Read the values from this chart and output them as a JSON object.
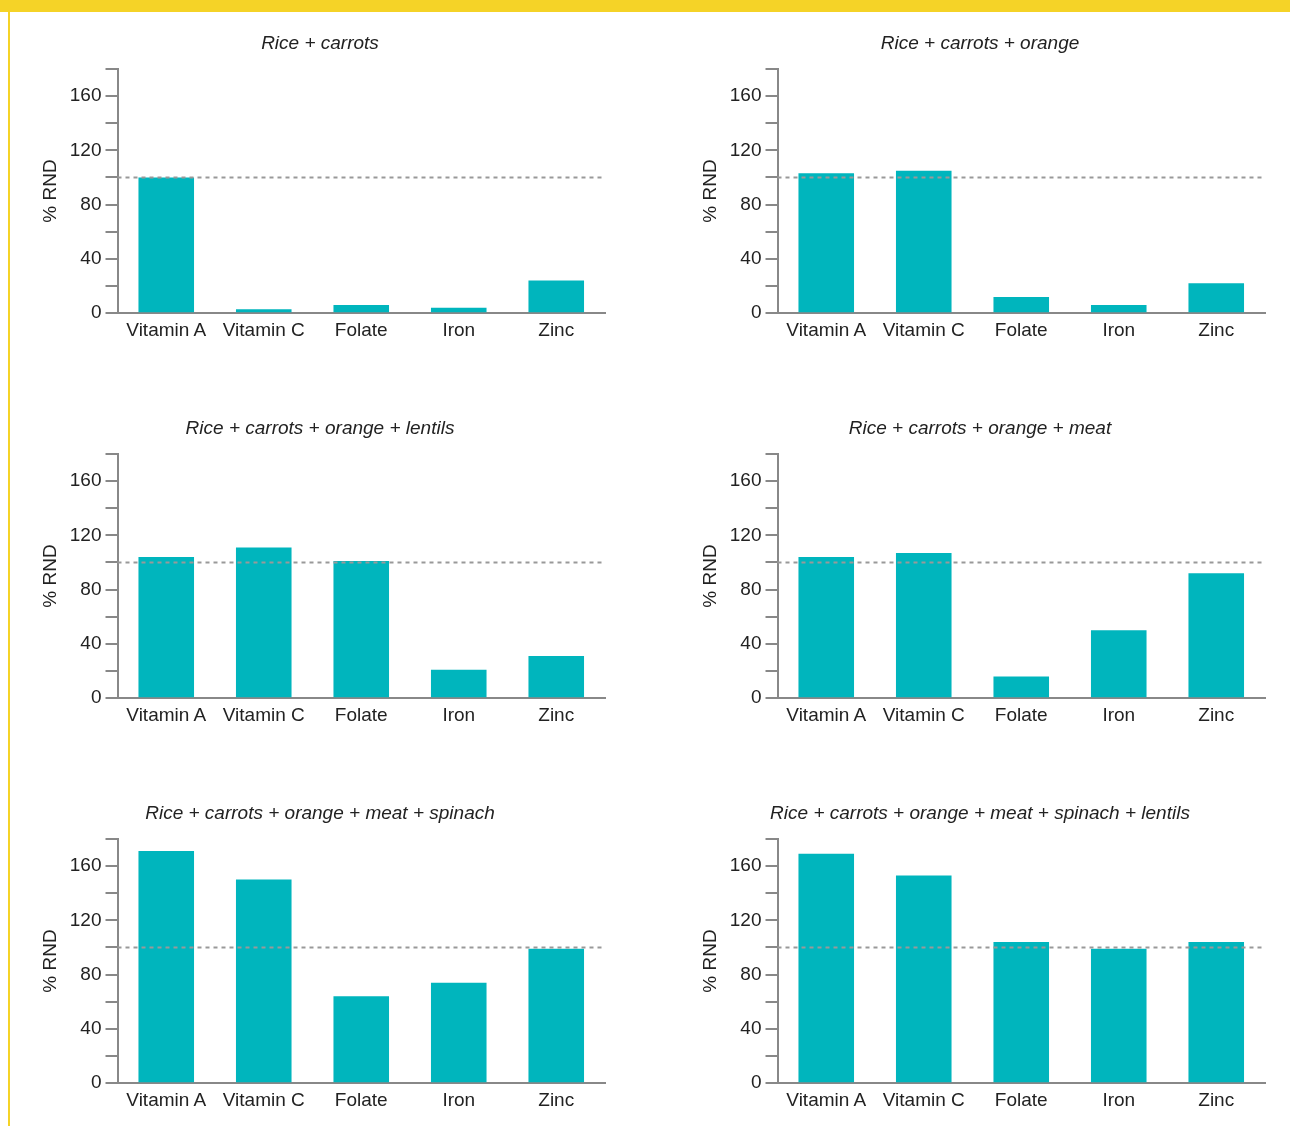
{
  "chart_data": [
    {
      "type": "bar",
      "title": "Rice + carrots",
      "ylabel": "% RND",
      "categories": [
        "Vitamin A",
        "Vitamin C",
        "Folate",
        "Iron",
        "Zinc"
      ],
      "values": [
        100,
        3,
        6,
        4,
        24
      ],
      "color": "#00b5bd",
      "ylim": [
        0,
        180
      ],
      "yticks": [
        0,
        {
          "value": 20,
          "label": null
        },
        40,
        {
          "value": 60,
          "label": null
        },
        80,
        {
          "value": 100,
          "label": null
        },
        120,
        {
          "value": 140,
          "label": null
        },
        160,
        {
          "value": 180,
          "label": null
        }
      ],
      "ref_lines": [
        {
          "axis": "y",
          "value": 100,
          "color": "#999999",
          "line_style": "dashed"
        }
      ],
      "grid": false,
      "legend": false
    },
    {
      "type": "bar",
      "title": "Rice + carrots + orange",
      "ylabel": "% RND",
      "categories": [
        "Vitamin A",
        "Vitamin C",
        "Folate",
        "Iron",
        "Zinc"
      ],
      "values": [
        103,
        105,
        12,
        6,
        22
      ],
      "color": "#00b5bd",
      "ylim": [
        0,
        180
      ],
      "yticks": [
        0,
        {
          "value": 20,
          "label": null
        },
        40,
        {
          "value": 60,
          "label": null
        },
        80,
        {
          "value": 100,
          "label": null
        },
        120,
        {
          "value": 140,
          "label": null
        },
        160,
        {
          "value": 180,
          "label": null
        }
      ],
      "ref_lines": [
        {
          "axis": "y",
          "value": 100,
          "color": "#999999",
          "line_style": "dashed"
        }
      ],
      "grid": false,
      "legend": false
    },
    {
      "type": "bar",
      "title": "Rice + carrots + orange + lentils",
      "ylabel": "% RND",
      "categories": [
        "Vitamin A",
        "Vitamin C",
        "Folate",
        "Iron",
        "Zinc"
      ],
      "values": [
        104,
        111,
        101,
        21,
        31
      ],
      "color": "#00b5bd",
      "ylim": [
        0,
        180
      ],
      "yticks": [
        0,
        {
          "value": 20,
          "label": null
        },
        40,
        {
          "value": 60,
          "label": null
        },
        80,
        {
          "value": 100,
          "label": null
        },
        120,
        {
          "value": 140,
          "label": null
        },
        160,
        {
          "value": 180,
          "label": null
        }
      ],
      "ref_lines": [
        {
          "axis": "y",
          "value": 100,
          "color": "#999999",
          "line_style": "dashed"
        }
      ],
      "grid": false,
      "legend": false
    },
    {
      "type": "bar",
      "title": "Rice + carrots + orange + meat",
      "ylabel": "% RND",
      "categories": [
        "Vitamin A",
        "Vitamin C",
        "Folate",
        "Iron",
        "Zinc"
      ],
      "values": [
        104,
        107,
        16,
        50,
        92
      ],
      "color": "#00b5bd",
      "ylim": [
        0,
        180
      ],
      "yticks": [
        0,
        {
          "value": 20,
          "label": null
        },
        40,
        {
          "value": 60,
          "label": null
        },
        80,
        {
          "value": 100,
          "label": null
        },
        120,
        {
          "value": 140,
          "label": null
        },
        160,
        {
          "value": 180,
          "label": null
        }
      ],
      "ref_lines": [
        {
          "axis": "y",
          "value": 100,
          "color": "#999999",
          "line_style": "dashed"
        }
      ],
      "grid": false,
      "legend": false
    },
    {
      "type": "bar",
      "title": "Rice + carrots + orange + meat + spinach",
      "ylabel": "% RND",
      "categories": [
        "Vitamin A",
        "Vitamin C",
        "Folate",
        "Iron",
        "Zinc"
      ],
      "values": [
        171,
        150,
        64,
        74,
        99
      ],
      "color": "#00b5bd",
      "ylim": [
        0,
        180
      ],
      "yticks": [
        0,
        {
          "value": 20,
          "label": null
        },
        40,
        {
          "value": 60,
          "label": null
        },
        80,
        {
          "value": 100,
          "label": null
        },
        120,
        {
          "value": 140,
          "label": null
        },
        160,
        {
          "value": 180,
          "label": null
        }
      ],
      "ref_lines": [
        {
          "axis": "y",
          "value": 100,
          "color": "#999999",
          "line_style": "dashed"
        }
      ],
      "grid": false,
      "legend": false
    },
    {
      "type": "bar",
      "title": "Rice + carrots + orange + meat + spinach + lentils",
      "ylabel": "% RND",
      "categories": [
        "Vitamin A",
        "Vitamin C",
        "Folate",
        "Iron",
        "Zinc"
      ],
      "values": [
        169,
        153,
        104,
        99,
        104
      ],
      "color": "#00b5bd",
      "ylim": [
        0,
        180
      ],
      "yticks": [
        0,
        {
          "value": 20,
          "label": null
        },
        40,
        {
          "value": 60,
          "label": null
        },
        80,
        {
          "value": 100,
          "label": null
        },
        120,
        {
          "value": 140,
          "label": null
        },
        160,
        {
          "value": 180,
          "label": null
        }
      ],
      "ref_lines": [
        {
          "axis": "y",
          "value": 100,
          "color": "#999999",
          "line_style": "dashed"
        }
      ],
      "grid": false,
      "legend": false
    }
  ]
}
